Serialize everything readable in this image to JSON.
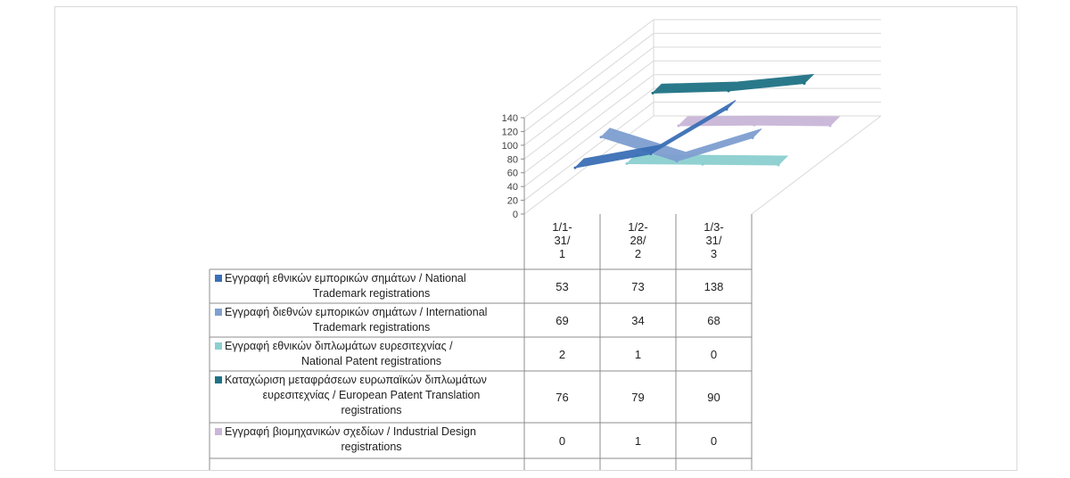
{
  "chart_data": {
    "type": "line",
    "three_d": true,
    "categories": [
      "1/1-31/1",
      "1/2-28/2",
      "1/3-31/3"
    ],
    "category_label_lines": [
      [
        "1/1-",
        "31/",
        "1"
      ],
      [
        "1/2-",
        "28/",
        "2"
      ],
      [
        "1/3-",
        "31/",
        "3"
      ]
    ],
    "ylim": [
      0,
      140
    ],
    "yticks": [
      0,
      20,
      40,
      60,
      80,
      100,
      120,
      140
    ],
    "grid": true,
    "legend": "data-table",
    "series": [
      {
        "name": "Εγγραφή εθνικών εμπορικών σηµάτων / National Trademark registrations",
        "label_lines": [
          "Εγγραφή εθνικών εμπορικών σηµάτων / National",
          "Trademark registrations"
        ],
        "values": [
          53,
          73,
          138
        ],
        "color": "#3b6fb6"
      },
      {
        "name": "Εγγραφή διεθνών εμπορικών σηµάτων / International Trademark registrations",
        "label_lines": [
          "Εγγραφή διεθνών εμπορικών σηµάτων / International",
          "Trademark registrations"
        ],
        "values": [
          69,
          34,
          68
        ],
        "color": "#7f9fd0"
      },
      {
        "name": "Εγγραφή εθνικών διπλωμάτων ευρεσιτεχνίας / National Patent registrations",
        "label_lines": [
          "Εγγραφή εθνικών διπλωμάτων ευρεσιτεχνίας /",
          "National Patent registrations"
        ],
        "values": [
          2,
          1,
          0
        ],
        "color": "#8ccfd0"
      },
      {
        "name": "Καταχώριση μεταφράσεων ευρωπαϊκών διπλωμάτων ευρεσιτεχνίας / European Patent Translation registrations",
        "label_lines": [
          "Καταχώριση μεταφράσεων ευρωπαϊκών διπλωμάτων",
          "ευρεσιτεχνίας / European Patent Translation",
          "registrations"
        ],
        "values": [
          76,
          79,
          90
        ],
        "color": "#1f7285"
      },
      {
        "name": "Εγγραφή βιομηχανικών σχεδίων / Industrial Design registrations",
        "label_lines": [
          "Εγγραφή βιομηχανικών σχεδίων / Industrial Design",
          "registrations"
        ],
        "values": [
          0,
          1,
          0
        ],
        "color": "#c9b6d9"
      }
    ]
  }
}
